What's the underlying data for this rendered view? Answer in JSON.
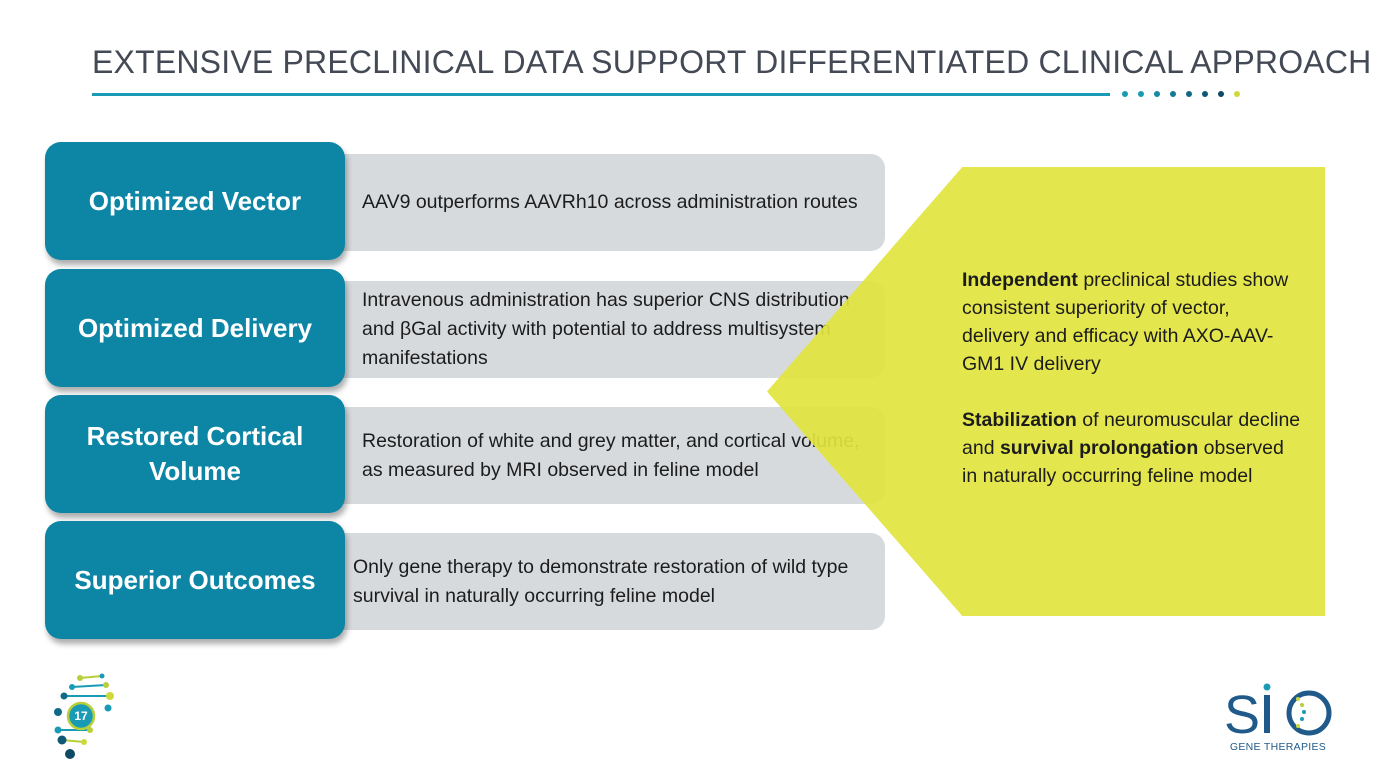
{
  "title": "EXTENSIVE PRECLINICAL DATA SUPPORT DIFFERENTIATED CLINICAL APPROACH",
  "colors": {
    "accent_teal": "#0d86a6",
    "rule_blue": "#1a9bb5",
    "grey_box": "#d7dadd",
    "highlight_yellow": "#e2e43e",
    "title_text": "#444a55"
  },
  "rows": [
    {
      "label": "Optimized Vector",
      "description": "AAV9 outperforms AAVRh10 across administration routes"
    },
    {
      "label": "Optimized Delivery",
      "description": "Intravenous administration has superior CNS distribution and βGal activity with potential to address multisystem manifestations"
    },
    {
      "label": "Restored Cortical Volume",
      "description": "Restoration of white and grey matter, and cortical volume, as measured by MRI observed in feline model"
    },
    {
      "label": "Superior Outcomes",
      "description": "Only gene therapy to demonstrate restoration of wild type survival in naturally occurring feline model"
    }
  ],
  "summary": {
    "p1_bold": "Independent",
    "p1_rest": " preclinical studies show consistent superiority of vector, delivery and efficacy with AXO-AAV-GM1 IV delivery",
    "p2_bold1": "Stabilization",
    "p2_mid": " of neuromuscular decline and ",
    "p2_bold2": "survival prolongation",
    "p2_rest": " observed in naturally occurring feline model"
  },
  "footer": {
    "page_number": "17",
    "page_logo_icon": "dna-helix-icon",
    "brand_logo_icon": "sio-logo-icon",
    "brand_logo_text": "SIO",
    "brand_tagline": "GENE THERAPIES"
  }
}
